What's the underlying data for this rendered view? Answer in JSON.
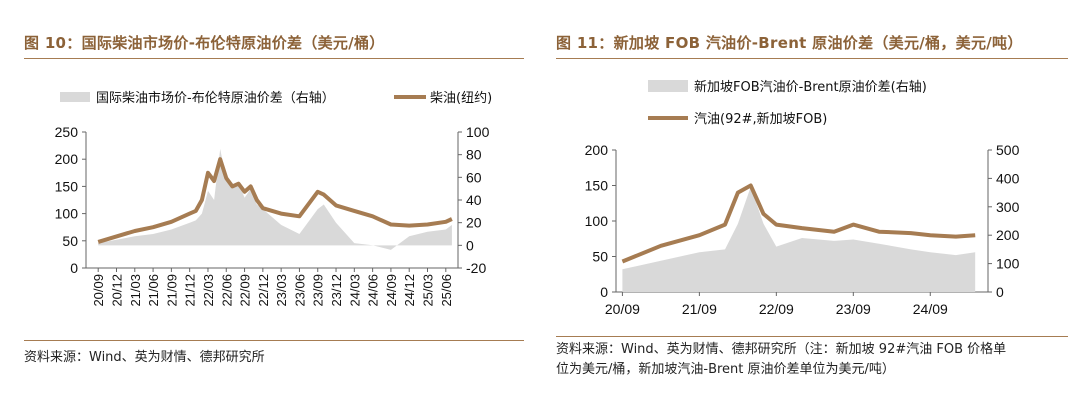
{
  "figures": [
    {
      "title": "图 10：国际柴油市场价-布伦特原油价差（美元/桶）",
      "source": "资料来源：Wind、英为财情、德邦研究所"
    },
    {
      "title": "图 11：新加坡 FOB 汽油价-Brent 原油价差（美元/桶，美元/吨）",
      "source_line1": "资料来源：Wind、英为财情、德邦研究所（注：新加坡 92#汽油 FOB 价格单",
      "source_line2": "位为美元/桶，新加坡汽油-Brent 原油价差单位为美元/吨）"
    }
  ],
  "colors": {
    "price_line": "#a67c52",
    "spread_area": "#d9d9d9",
    "accent_rule": "#a67c52",
    "title_text": "#8c6238"
  },
  "chart_data": [
    {
      "type": "line",
      "title": "",
      "legend_placement": "top",
      "grid": false,
      "series": [
        {
          "name": "国际柴油市场价-布伦特原油价差（右轴）",
          "type": "area",
          "axis": "right",
          "x": [
            "2020-09",
            "2020-12",
            "2021-03",
            "2021-06",
            "2021-09",
            "2021-12",
            "2022-01",
            "2022-02",
            "2022-03",
            "2022-04",
            "2022-05",
            "2022-06",
            "2022-07",
            "2022-08",
            "2022-09",
            "2022-10",
            "2022-11",
            "2022-12",
            "2023-03",
            "2023-06",
            "2023-09",
            "2023-10",
            "2023-12",
            "2024-03",
            "2024-06",
            "2024-09",
            "2024-12",
            "2025-03",
            "2025-06",
            "2025-07"
          ],
          "values": [
            2,
            5,
            8,
            10,
            14,
            20,
            22,
            28,
            48,
            40,
            85,
            58,
            50,
            55,
            42,
            50,
            36,
            32,
            18,
            10,
            32,
            36,
            20,
            2,
            0,
            -4,
            8,
            12,
            14,
            18
          ]
        },
        {
          "name": "柴油(纽约)",
          "type": "line",
          "axis": "left",
          "x": [
            "2020-09",
            "2020-12",
            "2021-03",
            "2021-06",
            "2021-09",
            "2021-12",
            "2022-01",
            "2022-02",
            "2022-03",
            "2022-04",
            "2022-05",
            "2022-06",
            "2022-07",
            "2022-08",
            "2022-09",
            "2022-10",
            "2022-11",
            "2022-12",
            "2023-03",
            "2023-06",
            "2023-09",
            "2023-10",
            "2023-12",
            "2024-03",
            "2024-06",
            "2024-09",
            "2024-12",
            "2025-03",
            "2025-06",
            "2025-07"
          ],
          "values": [
            48,
            58,
            68,
            75,
            85,
            100,
            105,
            125,
            175,
            160,
            200,
            165,
            150,
            155,
            140,
            150,
            125,
            110,
            100,
            95,
            140,
            135,
            115,
            105,
            95,
            80,
            78,
            80,
            85,
            90
          ]
        }
      ],
      "y_left": {
        "ticks": [
          "250",
          "200",
          "150",
          "100",
          "50",
          "0"
        ],
        "ylim": [
          0,
          250
        ]
      },
      "y_right": {
        "ticks": [
          "100",
          "80",
          "60",
          "40",
          "20",
          "0",
          "-20"
        ],
        "ylim": [
          -20,
          100
        ]
      },
      "x_ticks": [
        "20/09",
        "20/12",
        "21/03",
        "21/06",
        "21/09",
        "21/12",
        "22/03",
        "22/06",
        "22/09",
        "22/12",
        "23/03",
        "23/06",
        "23/09",
        "23/12",
        "24/03",
        "24/06",
        "24/09",
        "24/12",
        "25/03",
        "25/06"
      ]
    },
    {
      "type": "line",
      "title": "",
      "legend_placement": "top",
      "grid": false,
      "series": [
        {
          "name": "新加坡FOB汽油价-Brent原油价差(右轴)",
          "type": "area",
          "axis": "right",
          "x": [
            "2020-09",
            "2021-03",
            "2021-09",
            "2022-01",
            "2022-03",
            "2022-05",
            "2022-07",
            "2022-09",
            "2023-01",
            "2023-06",
            "2023-09",
            "2024-01",
            "2024-06",
            "2024-09",
            "2025-01",
            "2025-04"
          ],
          "values": [
            80,
            110,
            140,
            150,
            240,
            370,
            240,
            160,
            190,
            180,
            185,
            170,
            150,
            140,
            130,
            140
          ]
        },
        {
          "name": "汽油(92#,新加坡FOB)",
          "type": "line",
          "axis": "left",
          "x": [
            "2020-09",
            "2021-03",
            "2021-09",
            "2022-01",
            "2022-03",
            "2022-05",
            "2022-07",
            "2022-09",
            "2023-01",
            "2023-06",
            "2023-09",
            "2024-01",
            "2024-06",
            "2024-09",
            "2025-01",
            "2025-04"
          ],
          "values": [
            43,
            65,
            80,
            95,
            140,
            150,
            110,
            95,
            90,
            85,
            95,
            85,
            83,
            80,
            78,
            80
          ]
        }
      ],
      "y_left": {
        "ticks": [
          "200",
          "150",
          "100",
          "50",
          "0"
        ],
        "ylim": [
          0,
          200
        ]
      },
      "y_right": {
        "ticks": [
          "500",
          "400",
          "300",
          "200",
          "100",
          "0"
        ],
        "ylim": [
          0,
          500
        ]
      },
      "x_ticks": [
        "20/09",
        "21/09",
        "22/09",
        "23/09",
        "24/09"
      ]
    }
  ]
}
